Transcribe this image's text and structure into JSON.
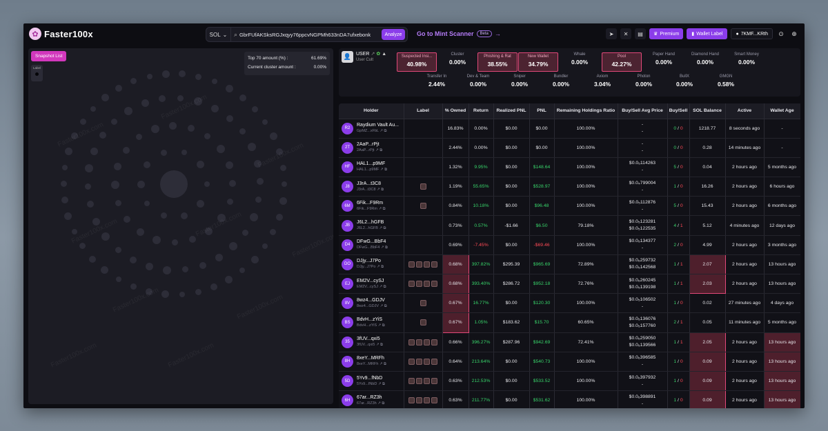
{
  "app": {
    "name": "Faster100x"
  },
  "topbar": {
    "chain": "SOL",
    "search_value": "GbrFUfAKSksRGJxqyy76ppcvNGPMh633nDA7ufxebonk",
    "analyze_label": "Analyze",
    "mint_link": "Go to Mint Scanner",
    "beta": "Beta",
    "premium_label": "Premium",
    "wallet_label": "Wallet Label",
    "account": "7KMF...KRth"
  },
  "bubble_panel": {
    "snapshot_label": "Snapshot List",
    "label_tag": "Label",
    "top70_label": "Top 70 amount (%) :",
    "top70_value": "61.69%",
    "cluster_label": "Current cluster amount :",
    "cluster_value": "0.00%",
    "watermark": "Faster100x.com"
  },
  "summary": {
    "user_name": "USER",
    "user_sub": "User Cult",
    "metrics_row1": [
      {
        "label": "Suspected Insi...",
        "value": "40.98%",
        "highlight": true
      },
      {
        "label": "Cluster",
        "value": "0.00%",
        "highlight": false
      },
      {
        "label": "Phishing & Rat",
        "value": "38.55%",
        "highlight": true
      },
      {
        "label": "New Wallet",
        "value": "34.79%",
        "highlight": true
      },
      {
        "label": "Whale",
        "value": "0.00%",
        "highlight": false
      },
      {
        "label": "Pool",
        "value": "42.27%",
        "highlight": true
      },
      {
        "label": "Paper Hand",
        "value": "0.00%",
        "highlight": false
      },
      {
        "label": "Diamond Hand",
        "value": "0.00%",
        "highlight": false
      },
      {
        "label": "Smart Money",
        "value": "0.00%",
        "highlight": false
      }
    ],
    "metrics_row2": [
      {
        "label": "Transfer In",
        "value": "2.44%"
      },
      {
        "label": "Dev & Team",
        "value": "0.00%"
      },
      {
        "label": "Sniper",
        "value": "0.00%"
      },
      {
        "label": "Bundler",
        "value": "0.00%"
      },
      {
        "label": "Axiom",
        "value": "3.04%"
      },
      {
        "label": "Photon",
        "value": "0.00%"
      },
      {
        "label": "BullX",
        "value": "0.00%"
      },
      {
        "label": "GMGN",
        "value": "0.58%"
      }
    ]
  },
  "table": {
    "headers": [
      "Holder",
      "Label",
      "% Owned",
      "Return",
      "Realized PNL",
      "PNL",
      "Remaining Holdings Ratio",
      "Buy/Sell Avg Price",
      "Buy/Sell",
      "SOL Balance",
      "Active",
      "Wallet Age"
    ],
    "rows": [
      {
        "badge": "R2",
        "name": "Raydium Vault Au...",
        "addr": "GpMZ...xFbL",
        "labels": 0,
        "owned": "16.83%",
        "ret": "0.00%",
        "ret_cls": "",
        "rpnl": "$0.00",
        "rpnl_cls": "",
        "pnl": "$0.00",
        "pnl_cls": "",
        "ratio": "100.00%",
        "avg1": "-",
        "avg2": "-",
        "buy": "0",
        "sell": "0",
        "sol": "1218.77",
        "active": "8 seconds ago",
        "age": "-"
      },
      {
        "badge": "2T",
        "name": "2AaP...rPjt",
        "addr": "2AaP...rPjt",
        "labels": 0,
        "owned": "2.44%",
        "ret": "0.00%",
        "ret_cls": "",
        "rpnl": "$0.00",
        "rpnl_cls": "",
        "pnl": "$0.00",
        "pnl_cls": "",
        "ratio": "100.00%",
        "avg1": "-",
        "avg2": "-",
        "buy": "0",
        "sell": "0",
        "sol": "0.28",
        "active": "14 minutes ago",
        "age": "-"
      },
      {
        "badge": "HF",
        "name": "HAL1...p9MF",
        "addr": "HAL1...p9MF",
        "labels": 0,
        "owned": "1.32%",
        "ret": "9.95%",
        "ret_cls": "pos",
        "rpnl": "$0.00",
        "rpnl_cls": "",
        "pnl": "$148.64",
        "pnl_cls": "pos",
        "ratio": "100.00%",
        "avg1": "$0.0₅114263",
        "avg2": "-",
        "buy": "5",
        "sell": "0",
        "sol": "0.04",
        "active": "2 hours ago",
        "age": "5 months ago"
      },
      {
        "badge": "J8",
        "name": "J3rA...t3C8",
        "addr": "J3rA...t3C8",
        "labels": 1,
        "owned": "1.19%",
        "ret": "55.65%",
        "ret_cls": "pos",
        "rpnl": "$0.00",
        "rpnl_cls": "",
        "pnl": "$528.97",
        "pnl_cls": "pos",
        "ratio": "100.00%",
        "avg1": "$0.0₄799004",
        "avg2": "-",
        "buy": "1",
        "sell": "0",
        "sol": "16.26",
        "active": "2 hours ago",
        "age": "6 hours ago"
      },
      {
        "badge": "6M",
        "name": "6Fik...F9Rm",
        "addr": "6Fik...F9Rm",
        "labels": 1,
        "owned": "0.84%",
        "ret": "10.18%",
        "ret_cls": "pos",
        "rpnl": "$0.00",
        "rpnl_cls": "",
        "pnl": "$96.48",
        "pnl_cls": "pos",
        "ratio": "100.00%",
        "avg1": "$0.0₅112876",
        "avg2": "-",
        "buy": "5",
        "sell": "0",
        "sol": "15.43",
        "active": "2 hours ago",
        "age": "6 months ago"
      },
      {
        "badge": "JB",
        "name": "J6L2...hGFB",
        "addr": "J6L2...hGFB",
        "labels": 0,
        "owned": "0.73%",
        "ret": "0.57%",
        "ret_cls": "pos",
        "rpnl": "-$1.66",
        "rpnl_cls": "",
        "pnl": "$6.50",
        "pnl_cls": "pos",
        "ratio": "79.18%",
        "avg1": "$0.0₅123281",
        "avg2": "$0.0₅122535",
        "buy": "4",
        "sell": "1",
        "sol": "5.12",
        "active": "4 minutes ago",
        "age": "12 days ago"
      },
      {
        "badge": "D4",
        "name": "DFwG...BbF4",
        "addr": "DFwG...BbF4",
        "labels": 0,
        "owned": "0.69%",
        "ret": "-7.45%",
        "ret_cls": "neg",
        "rpnl": "$0.00",
        "rpnl_cls": "",
        "pnl": "-$69.46",
        "pnl_cls": "neg",
        "ratio": "100.00%",
        "avg1": "$0.0₅134377",
        "avg2": "-",
        "buy": "2",
        "sell": "0",
        "sol": "4.99",
        "active": "2 hours ago",
        "age": "3 months ago"
      },
      {
        "badge": "DO",
        "name": "DJjy...J7Po",
        "addr": "DJjy...J7Po",
        "labels": 4,
        "owned": "0.68%",
        "ret": "397.82%",
        "ret_cls": "pos",
        "rpnl": "$295.39",
        "rpnl_cls": "",
        "pnl": "$965.69",
        "pnl_cls": "pos",
        "ratio": "72.89%",
        "avg1": "$0.0₆259732",
        "avg2": "$0.0₅142568",
        "buy": "1",
        "sell": "1",
        "sol": "2.07",
        "active": "2 hours ago",
        "age": "13 hours ago"
      },
      {
        "badge": "EJ",
        "name": "EM2V...cySJ",
        "addr": "EM2V...cySJ",
        "labels": 4,
        "owned": "0.68%",
        "ret": "393.40%",
        "ret_cls": "pos",
        "rpnl": "$286.72",
        "rpnl_cls": "",
        "pnl": "$952.18",
        "pnl_cls": "pos",
        "ratio": "72.76%",
        "avg1": "$0.0₆260245",
        "avg2": "$0.0₅139198",
        "buy": "1",
        "sell": "1",
        "sol": "2.03",
        "active": "2 hours ago",
        "age": "13 hours ago"
      },
      {
        "badge": "8V",
        "name": "8wz4...GDJV",
        "addr": "8wz4...GDJV",
        "labels": 1,
        "owned": "0.67%",
        "ret": "16.77%",
        "ret_cls": "pos",
        "rpnl": "$0.00",
        "rpnl_cls": "",
        "pnl": "$120.30",
        "pnl_cls": "pos",
        "ratio": "100.00%",
        "avg1": "$0.0₅106502",
        "avg2": "-",
        "buy": "1",
        "sell": "0",
        "sol": "0.02",
        "active": "27 minutes ago",
        "age": "4 days ago"
      },
      {
        "badge": "BS",
        "name": "BdvH...zYiS",
        "addr": "BdvH...zYiS",
        "labels": 1,
        "owned": "0.67%",
        "ret": "1.05%",
        "ret_cls": "pos",
        "rpnl": "$183.62",
        "rpnl_cls": "",
        "pnl": "$15.70",
        "pnl_cls": "pos",
        "ratio": "60.65%",
        "avg1": "$0.0₅136076",
        "avg2": "$0.0₅157760",
        "buy": "2",
        "sell": "1",
        "sol": "0.05",
        "active": "11 minutes ago",
        "age": "5 months ago"
      },
      {
        "badge": "35",
        "name": "3fUV...qxi5",
        "addr": "3fUV...qxi5",
        "labels": 4,
        "owned": "0.66%",
        "ret": "396.27%",
        "ret_cls": "pos",
        "rpnl": "$287.96",
        "rpnl_cls": "",
        "pnl": "$942.69",
        "pnl_cls": "pos",
        "ratio": "72.41%",
        "avg1": "$0.0₆259050",
        "avg2": "$0.0₅139566",
        "buy": "1",
        "sell": "1",
        "sol": "2.05",
        "active": "2 hours ago",
        "age": "13 hours ago"
      },
      {
        "badge": "8H",
        "name": "8xeY...MRFh",
        "addr": "8xeY...MRFh",
        "labels": 4,
        "owned": "0.64%",
        "ret": "213.64%",
        "ret_cls": "pos",
        "rpnl": "$0.00",
        "rpnl_cls": "",
        "pnl": "$540.73",
        "pnl_cls": "pos",
        "ratio": "100.00%",
        "avg1": "$0.0₆396585",
        "avg2": "-",
        "buy": "1",
        "sell": "0",
        "sol": "0.09",
        "active": "2 hours ago",
        "age": "13 hours ago"
      },
      {
        "badge": "5D",
        "name": "5Yv9...fNbD",
        "addr": "5Yv9...fNbD",
        "labels": 4,
        "owned": "0.63%",
        "ret": "212.53%",
        "ret_cls": "pos",
        "rpnl": "$0.00",
        "rpnl_cls": "",
        "pnl": "$533.52",
        "pnl_cls": "pos",
        "ratio": "100.00%",
        "avg1": "$0.0₆397932",
        "avg2": "-",
        "buy": "1",
        "sell": "0",
        "sol": "0.09",
        "active": "2 hours ago",
        "age": "13 hours ago"
      },
      {
        "badge": "6H",
        "name": "67ar...RZ3h",
        "addr": "67ar...RZ3h",
        "labels": 4,
        "owned": "0.63%",
        "ret": "211.77%",
        "ret_cls": "pos",
        "rpnl": "$0.00",
        "rpnl_cls": "",
        "pnl": "$531.62",
        "pnl_cls": "pos",
        "ratio": "100.00%",
        "avg1": "$0.0₆398891",
        "avg2": "-",
        "buy": "1",
        "sell": "0",
        "sol": "0.09",
        "active": "2 hours ago",
        "age": "13 hours ago"
      }
    ]
  },
  "colors": {
    "accent": "#8b3dea",
    "highlight": "#e3497a",
    "positive": "#38d46a",
    "negative": "#ff4a56"
  }
}
